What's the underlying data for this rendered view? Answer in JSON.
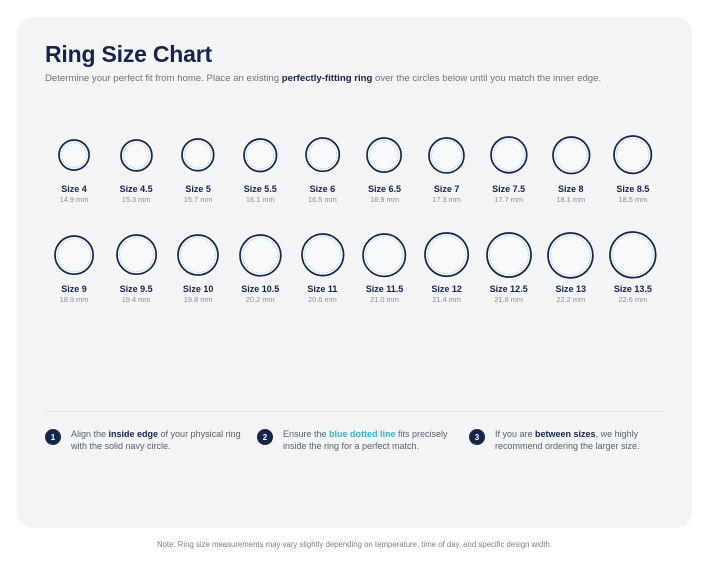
{
  "header": {
    "title": "Ring Size Chart",
    "subtitle_before": "Determine your perfect fit from home. Place an existing ",
    "subtitle_bold": "perfectly-fitting ring",
    "subtitle_after": " over the circles below until you match the inner edge."
  },
  "colors": {
    "navy": "#16244a",
    "dotted_line": "#8fc4dd",
    "accent": "#3ab0cd",
    "card_background": "#f3f4f6"
  },
  "sizes": [
    {
      "label": "Size 4",
      "mm_text": "14.9 mm",
      "diameter_mm": 14.9
    },
    {
      "label": "Size 4.5",
      "mm_text": "15.3 mm",
      "diameter_mm": 15.3
    },
    {
      "label": "Size 5",
      "mm_text": "15.7 mm",
      "diameter_mm": 15.7
    },
    {
      "label": "Size 5.5",
      "mm_text": "16.1 mm",
      "diameter_mm": 16.1
    },
    {
      "label": "Size 6",
      "mm_text": "16.5 mm",
      "diameter_mm": 16.5
    },
    {
      "label": "Size 6.5",
      "mm_text": "16.9 mm",
      "diameter_mm": 16.9
    },
    {
      "label": "Size 7",
      "mm_text": "17.3 mm",
      "diameter_mm": 17.3
    },
    {
      "label": "Size 7.5",
      "mm_text": "17.7 mm",
      "diameter_mm": 17.7
    },
    {
      "label": "Size 8",
      "mm_text": "18.1 mm",
      "diameter_mm": 18.1
    },
    {
      "label": "Size 8.5",
      "mm_text": "18.5 mm",
      "diameter_mm": 18.5
    },
    {
      "label": "Size 9",
      "mm_text": "18.9 mm",
      "diameter_mm": 18.9
    },
    {
      "label": "Size 9.5",
      "mm_text": "19.4 mm",
      "diameter_mm": 19.4
    },
    {
      "label": "Size 10",
      "mm_text": "19.8 mm",
      "diameter_mm": 19.8
    },
    {
      "label": "Size 10.5",
      "mm_text": "20.2 mm",
      "diameter_mm": 20.2
    },
    {
      "label": "Size 11",
      "mm_text": "20.6 mm",
      "diameter_mm": 20.6
    },
    {
      "label": "Size 11.5",
      "mm_text": "21.0 mm",
      "diameter_mm": 21.0
    },
    {
      "label": "Size 12",
      "mm_text": "21.4 mm",
      "diameter_mm": 21.4
    },
    {
      "label": "Size 12.5",
      "mm_text": "21.8 mm",
      "diameter_mm": 21.8
    },
    {
      "label": "Size 13",
      "mm_text": "22.2 mm",
      "diameter_mm": 22.2
    },
    {
      "label": "Size 13.5",
      "mm_text": "22.6 mm",
      "diameter_mm": 22.6
    }
  ],
  "steps": [
    {
      "number": "1",
      "before": "Align the ",
      "bold": "inside edge",
      "after": " of your physical ring with the solid navy circle."
    },
    {
      "number": "2",
      "before": "Ensure the ",
      "bold": "blue dotted line",
      "after": " fits precisely inside the ring for a perfect match."
    },
    {
      "number": "3",
      "before": "If you are ",
      "bold": "between sizes",
      "after": ", we highly recommend ordering the larger size."
    }
  ],
  "footer": {
    "note": "Note: Ring size measurements may vary slightly depending on temperature, time of day, and specific design width."
  }
}
